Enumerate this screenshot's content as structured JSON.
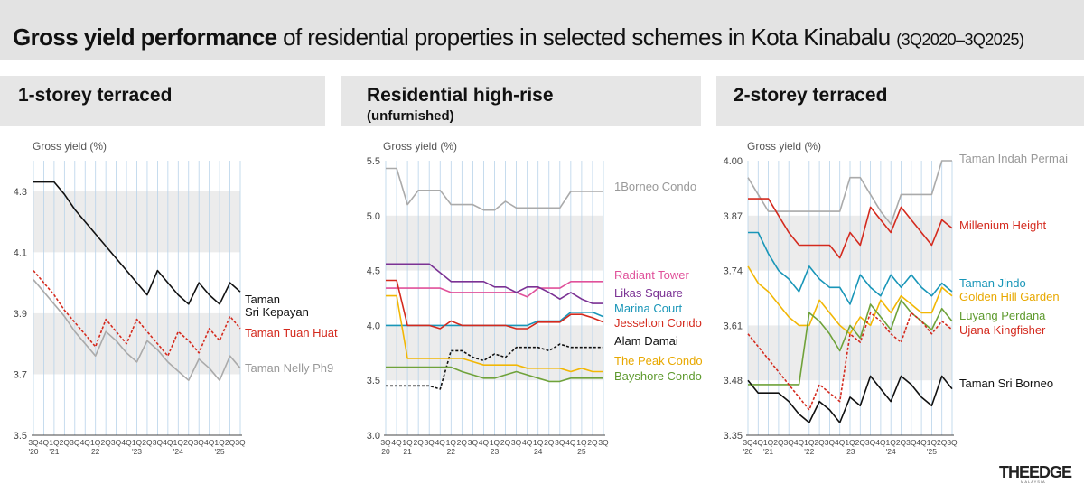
{
  "header": {
    "title_bold": "Gross yield performance",
    "title_rest": " of residential properties in selected schemes in Kota Kinabalu",
    "title_range": "(3Q2020–3Q2025)"
  },
  "logo": {
    "main": "THEEDGE",
    "sub": "MALAYSIA"
  },
  "colors": {
    "band": "#ececec",
    "vgrid": "#b8d3ea",
    "axis": "#444"
  },
  "chart_data": [
    {
      "type": "line",
      "title": "1-storey terraced",
      "ylabel": "Gross yield (%)",
      "ylim": [
        3.5,
        4.4
      ],
      "yticks": [
        "3.5",
        "3.7",
        "3.9",
        "4.1",
        "4.3"
      ],
      "x": [
        "3Q20",
        "4Q20",
        "1Q21",
        "2Q21",
        "3Q21",
        "4Q21",
        "1Q22",
        "2Q22",
        "3Q22",
        "4Q22",
        "1Q23",
        "2Q23",
        "3Q23",
        "4Q23",
        "1Q24",
        "2Q24",
        "3Q24",
        "4Q24",
        "1Q25",
        "2Q25",
        "3Q25"
      ],
      "xtick_quarters": [
        "3Q",
        "4Q",
        "1Q",
        "2Q",
        "3Q",
        "4Q",
        "1Q",
        "2Q",
        "3Q",
        "4Q",
        "1Q",
        "2Q",
        "3Q",
        "4Q",
        "1Q",
        "2Q",
        "3Q",
        "4Q",
        "1Q",
        "2Q",
        "3Q"
      ],
      "xtick_years": [
        "'20",
        "",
        "'21",
        "",
        "",
        "",
        "22",
        "",
        "",
        "",
        "'23",
        "",
        "",
        "",
        "'24",
        "",
        "",
        "",
        "'25",
        "",
        ""
      ],
      "series": [
        {
          "name": "Taman Sri Kepayan",
          "label_lines": [
            "Taman",
            "Sri Kepayan"
          ],
          "color": "#111111",
          "dash": false,
          "label_color": "#111111",
          "values": [
            4.33,
            4.33,
            4.33,
            4.29,
            4.24,
            4.2,
            4.16,
            4.12,
            4.08,
            4.04,
            4.0,
            3.96,
            4.04,
            4.0,
            3.96,
            3.93,
            4.0,
            3.96,
            3.93,
            4.0,
            3.97
          ]
        },
        {
          "name": "Taman Tuan Huat",
          "label_lines": [
            "Taman Tuan Huat"
          ],
          "color": "#d42a1e",
          "dash": true,
          "label_color": "#d42a1e",
          "values": [
            4.04,
            4.0,
            3.96,
            3.91,
            3.87,
            3.83,
            3.79,
            3.88,
            3.84,
            3.8,
            3.88,
            3.84,
            3.8,
            3.76,
            3.84,
            3.81,
            3.77,
            3.85,
            3.81,
            3.89,
            3.85
          ]
        },
        {
          "name": "Taman Nelly Ph9",
          "label_lines": [
            "Taman Nelly Ph9"
          ],
          "color": "#aaaaaa",
          "dash": false,
          "label_color": "#999999",
          "values": [
            4.01,
            3.97,
            3.93,
            3.89,
            3.84,
            3.8,
            3.76,
            3.84,
            3.81,
            3.77,
            3.74,
            3.81,
            3.78,
            3.74,
            3.71,
            3.68,
            3.75,
            3.72,
            3.68,
            3.76,
            3.72
          ]
        }
      ]
    },
    {
      "type": "line",
      "title": "Residential high-rise",
      "subtitle": "(unfurnished)",
      "ylabel": "Gross yield (%)",
      "ylim": [
        3.0,
        5.5
      ],
      "yticks": [
        "3.0",
        "3.5",
        "4.0",
        "4.5",
        "5.0",
        "5.5"
      ],
      "x": [
        "3Q20",
        "4Q20",
        "1Q21",
        "2Q21",
        "3Q21",
        "4Q21",
        "1Q22",
        "2Q22",
        "3Q22",
        "4Q22",
        "1Q23",
        "2Q23",
        "3Q23",
        "4Q23",
        "1Q24",
        "2Q24",
        "3Q24",
        "4Q24",
        "1Q25",
        "2Q25",
        "3Q25"
      ],
      "xtick_quarters": [
        "3Q",
        "4Q",
        "1Q",
        "2Q",
        "3Q",
        "4Q",
        "1Q",
        "2Q",
        "3Q",
        "4Q",
        "1Q",
        "2Q",
        "3Q",
        "4Q",
        "1Q",
        "2Q",
        "3Q",
        "4Q",
        "1Q",
        "2Q",
        "3Q"
      ],
      "xtick_years": [
        "20",
        "",
        "21",
        "",
        "",
        "",
        "22",
        "",
        "",
        "",
        "23",
        "",
        "",
        "",
        "24",
        "",
        "",
        "",
        "25",
        "",
        ""
      ],
      "series": [
        {
          "name": "1Borneo Condo",
          "label_lines": [
            "1Borneo Condo"
          ],
          "color": "#aaaaaa",
          "dash": false,
          "label_color": "#999999",
          "values": [
            5.43,
            5.43,
            5.1,
            5.23,
            5.23,
            5.23,
            5.1,
            5.1,
            5.1,
            5.05,
            5.05,
            5.13,
            5.07,
            5.07,
            5.07,
            5.07,
            5.07,
            5.22,
            5.22,
            5.22,
            5.22
          ]
        },
        {
          "name": "Radiant Tower",
          "label_lines": [
            "Radiant Tower"
          ],
          "color": "#e0519a",
          "dash": false,
          "label_color": "#e0519a",
          "values": [
            4.34,
            4.34,
            4.34,
            4.34,
            4.34,
            4.34,
            4.3,
            4.3,
            4.3,
            4.3,
            4.3,
            4.3,
            4.3,
            4.26,
            4.34,
            4.34,
            4.34,
            4.4,
            4.4,
            4.4,
            4.4
          ]
        },
        {
          "name": "Likas Square",
          "label_lines": [
            "Likas Square"
          ],
          "color": "#7b3294",
          "dash": false,
          "label_color": "#7b3294",
          "values": [
            4.56,
            4.56,
            4.56,
            4.56,
            4.56,
            4.48,
            4.4,
            4.4,
            4.4,
            4.4,
            4.35,
            4.35,
            4.3,
            4.35,
            4.35,
            4.3,
            4.24,
            4.3,
            4.24,
            4.2,
            4.2
          ]
        },
        {
          "name": "Marina Court",
          "label_lines": [
            "Marina Court"
          ],
          "color": "#1996b8",
          "dash": false,
          "label_color": "#1996b8",
          "values": [
            4.0,
            4.0,
            4.0,
            4.0,
            4.0,
            4.0,
            4.0,
            4.0,
            4.0,
            4.0,
            4.0,
            4.0,
            4.0,
            4.0,
            4.04,
            4.04,
            4.04,
            4.12,
            4.12,
            4.12,
            4.08
          ]
        },
        {
          "name": "Jesselton Condo",
          "label_lines": [
            "Jesselton Condo"
          ],
          "color": "#d42a1e",
          "dash": false,
          "label_color": "#d42a1e",
          "values": [
            4.41,
            4.41,
            4.0,
            4.0,
            4.0,
            3.97,
            4.04,
            4.0,
            4.0,
            4.0,
            4.0,
            4.0,
            3.97,
            3.97,
            4.03,
            4.03,
            4.03,
            4.1,
            4.1,
            4.07,
            4.03
          ]
        },
        {
          "name": "Alam Damai",
          "label_lines": [
            "Alam Damai"
          ],
          "color": "#111111",
          "dash": true,
          "label_color": "#111111",
          "values": [
            3.45,
            3.45,
            3.45,
            3.45,
            3.45,
            3.42,
            3.77,
            3.77,
            3.71,
            3.68,
            3.74,
            3.71,
            3.8,
            3.8,
            3.8,
            3.77,
            3.83,
            3.8,
            3.8,
            3.8,
            3.8
          ]
        },
        {
          "name": "The Peak Condo",
          "label_lines": [
            "The Peak Condo"
          ],
          "color": "#f2b705",
          "dash": false,
          "label_color": "#e8a800",
          "values": [
            4.27,
            4.27,
            3.7,
            3.7,
            3.7,
            3.7,
            3.7,
            3.7,
            3.67,
            3.64,
            3.64,
            3.64,
            3.64,
            3.61,
            3.61,
            3.61,
            3.61,
            3.58,
            3.61,
            3.58,
            3.58
          ]
        },
        {
          "name": "Bayshore Condo",
          "label_lines": [
            "Bayshore Condo"
          ],
          "color": "#6fa23a",
          "dash": false,
          "label_color": "#5e9a2e",
          "values": [
            3.62,
            3.62,
            3.62,
            3.62,
            3.62,
            3.62,
            3.62,
            3.58,
            3.55,
            3.52,
            3.52,
            3.55,
            3.58,
            3.55,
            3.52,
            3.49,
            3.49,
            3.52,
            3.52,
            3.52,
            3.52
          ]
        }
      ]
    },
    {
      "type": "line",
      "title": "2-storey terraced",
      "ylabel": "Gross yield (%)",
      "ylim": [
        3.35,
        4.0
      ],
      "yticks": [
        "3.35",
        "3.48",
        "3.61",
        "3.74",
        "3.87",
        "4.00"
      ],
      "x": [
        "3Q20",
        "4Q20",
        "1Q21",
        "2Q21",
        "3Q21",
        "4Q21",
        "1Q22",
        "2Q22",
        "3Q22",
        "4Q22",
        "1Q23",
        "2Q23",
        "3Q23",
        "4Q23",
        "1Q24",
        "2Q24",
        "3Q24",
        "4Q24",
        "1Q25",
        "2Q25",
        "3Q25"
      ],
      "xtick_quarters": [
        "3Q",
        "4Q",
        "1Q",
        "2Q",
        "3Q",
        "4Q",
        "1Q",
        "2Q",
        "3Q",
        "4Q",
        "1Q",
        "2Q",
        "3Q",
        "4Q",
        "1Q",
        "2Q",
        "3Q",
        "4Q",
        "1Q",
        "2Q",
        "3Q"
      ],
      "xtick_years": [
        "'20",
        "",
        "'21",
        "",
        "",
        "",
        "'22",
        "",
        "",
        "",
        "'23",
        "",
        "",
        "",
        "'24",
        "",
        "",
        "",
        "'25",
        "",
        ""
      ],
      "series": [
        {
          "name": "Taman Indah Permai",
          "label_lines": [
            "Taman Indah Permai"
          ],
          "color": "#aaaaaa",
          "dash": false,
          "label_color": "#999999",
          "values": [
            3.96,
            3.92,
            3.88,
            3.88,
            3.88,
            3.88,
            3.88,
            3.88,
            3.88,
            3.88,
            3.96,
            3.96,
            3.92,
            3.88,
            3.85,
            3.92,
            3.92,
            3.92,
            3.92,
            4.0,
            4.0
          ]
        },
        {
          "name": "Millenium Height",
          "label_lines": [
            "Millenium Height"
          ],
          "color": "#d42a1e",
          "dash": false,
          "label_color": "#d42a1e",
          "values": [
            3.91,
            3.91,
            3.91,
            3.87,
            3.83,
            3.8,
            3.8,
            3.8,
            3.8,
            3.77,
            3.83,
            3.8,
            3.89,
            3.86,
            3.83,
            3.89,
            3.86,
            3.83,
            3.8,
            3.86,
            3.84
          ]
        },
        {
          "name": "Taman Jindo",
          "label_lines": [
            "Taman Jindo"
          ],
          "color": "#1996b8",
          "dash": false,
          "label_color": "#1996b8",
          "values": [
            3.83,
            3.83,
            3.78,
            3.74,
            3.72,
            3.69,
            3.75,
            3.72,
            3.7,
            3.7,
            3.66,
            3.73,
            3.7,
            3.68,
            3.73,
            3.7,
            3.73,
            3.7,
            3.68,
            3.71,
            3.69
          ]
        },
        {
          "name": "Golden Hill Garden",
          "label_lines": [
            "Golden Hill Garden"
          ],
          "color": "#f2b705",
          "dash": false,
          "label_color": "#e8a800",
          "values": [
            3.75,
            3.71,
            3.69,
            3.66,
            3.63,
            3.61,
            3.61,
            3.67,
            3.64,
            3.61,
            3.59,
            3.63,
            3.61,
            3.67,
            3.64,
            3.68,
            3.66,
            3.64,
            3.64,
            3.7,
            3.68
          ]
        },
        {
          "name": "Luyang Perdana",
          "label_lines": [
            "Luyang Perdana"
          ],
          "color": "#6fa23a",
          "dash": false,
          "label_color": "#5e9a2e",
          "values": [
            3.47,
            3.47,
            3.47,
            3.47,
            3.47,
            3.47,
            3.64,
            3.62,
            3.59,
            3.55,
            3.61,
            3.58,
            3.66,
            3.63,
            3.6,
            3.67,
            3.64,
            3.62,
            3.6,
            3.65,
            3.62
          ]
        },
        {
          "name": "Ujana Kingfisher",
          "label_lines": [
            "Ujana Kingfisher"
          ],
          "color": "#d42a1e",
          "dash": true,
          "label_color": "#d42a1e",
          "values": [
            3.59,
            3.56,
            3.53,
            3.5,
            3.47,
            3.44,
            3.41,
            3.47,
            3.45,
            3.43,
            3.59,
            3.57,
            3.64,
            3.62,
            3.59,
            3.57,
            3.64,
            3.62,
            3.59,
            3.62,
            3.6
          ]
        },
        {
          "name": "Taman Sri Borneo",
          "label_lines": [
            "Taman Sri Borneo"
          ],
          "color": "#111111",
          "dash": false,
          "label_color": "#111111",
          "values": [
            3.48,
            3.45,
            3.45,
            3.45,
            3.43,
            3.4,
            3.38,
            3.43,
            3.41,
            3.38,
            3.44,
            3.42,
            3.49,
            3.46,
            3.43,
            3.49,
            3.47,
            3.44,
            3.42,
            3.49,
            3.46
          ]
        }
      ]
    }
  ]
}
